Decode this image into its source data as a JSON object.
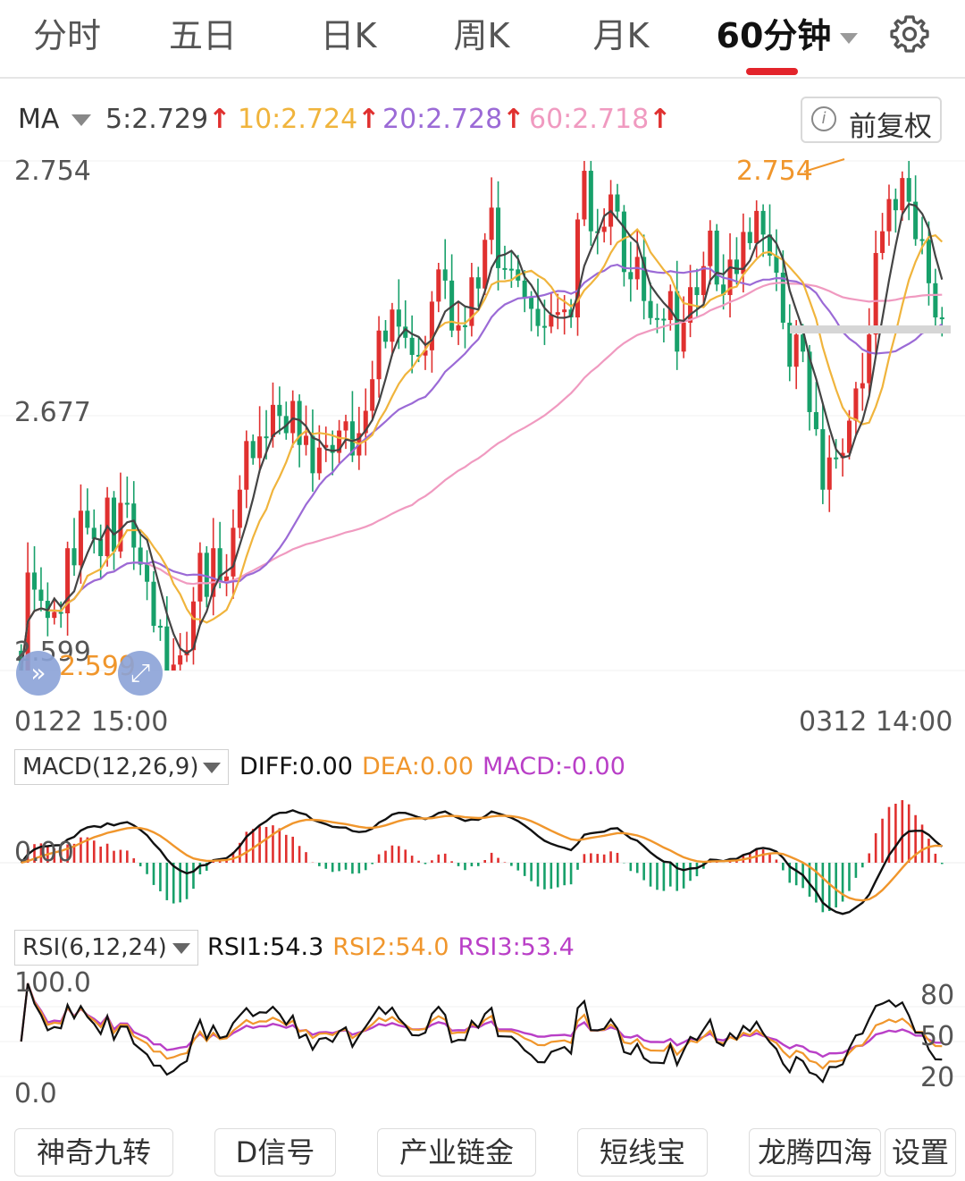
{
  "tabs": [
    {
      "label": "分时",
      "active": false
    },
    {
      "label": "五日",
      "active": false
    },
    {
      "label": "日K",
      "active": false
    },
    {
      "label": "周K",
      "active": false
    },
    {
      "label": "月K",
      "active": false
    },
    {
      "label": "60分钟",
      "active": true
    }
  ],
  "ma": {
    "label": "MA",
    "items": [
      {
        "text": "5:2.729",
        "color": "#444444"
      },
      {
        "text": "10:2.724",
        "color": "#f0b43c"
      },
      {
        "text": "20:2.728",
        "color": "#9b6ad6"
      },
      {
        "text": "60:2.718",
        "color": "#f09ac0"
      }
    ],
    "adjust_label": "前复权"
  },
  "price_axis": {
    "top": "2.754",
    "mid": "2.677",
    "bottom": "2.599"
  },
  "annotations": {
    "high": "2.754",
    "low": "2.599"
  },
  "time_axis": {
    "start": "0122 15:00",
    "end": "0312 14:00"
  },
  "macd": {
    "selector": "MACD(12,26,9)",
    "diff": "DIFF:0.00",
    "dea": "DEA:0.00",
    "macd": "MACD:-0.00",
    "zero_label": "0.00"
  },
  "rsi": {
    "selector": "RSI(6,12,24)",
    "rsi1": "RSI1:54.3",
    "rsi2": "RSI2:54.0",
    "rsi3": "RSI3:53.4",
    "top": "100.0",
    "bottom": "0.0",
    "right_ticks": [
      "80",
      "50",
      "20"
    ]
  },
  "bottom_buttons": [
    "神奇九转",
    "D信号",
    "产业链金",
    "短线宝",
    "龙腾四海",
    "设置"
  ],
  "colors": {
    "up": "#e0302f",
    "down": "#17a06a",
    "ma5": "#444444",
    "ma10": "#f0b43c",
    "ma20": "#9b6ad6",
    "ma60": "#f09ac0",
    "diff": "#111111",
    "dea": "#f0962c",
    "macd": "#b93fc7"
  },
  "chart_data": {
    "type": "candlestick",
    "interval": "60分钟",
    "candle_count": 140,
    "price_ylim": [
      2.599,
      2.754
    ],
    "close_path": [
      2.605,
      2.63,
      2.62,
      2.625,
      2.615,
      2.612,
      2.62,
      2.635,
      2.625,
      2.65,
      2.64,
      2.645,
      2.635,
      2.648,
      2.64,
      2.65,
      2.645,
      2.64,
      2.63,
      2.62,
      2.615,
      2.61,
      2.605,
      2.602,
      2.6,
      2.61,
      2.62,
      2.63,
      2.625,
      2.635,
      2.62,
      2.63,
      2.64,
      2.66,
      2.67,
      2.66,
      2.675,
      2.67,
      2.675,
      2.68,
      2.67,
      2.675,
      2.67,
      2.668,
      2.665,
      2.668,
      2.664,
      2.67,
      2.672,
      2.67,
      2.668,
      2.67,
      2.672,
      2.69,
      2.7,
      2.705,
      2.71,
      2.7,
      2.705,
      2.695,
      2.69,
      2.7,
      2.71,
      2.715,
      2.72,
      2.7,
      2.71,
      2.705,
      2.715,
      2.72,
      2.73,
      2.735,
      2.725,
      2.72,
      2.715,
      2.72,
      2.71,
      2.715,
      2.705,
      2.7,
      2.712,
      2.708,
      2.704,
      2.71,
      2.735,
      2.745,
      2.735,
      2.73,
      2.74,
      2.745,
      2.735,
      2.725,
      2.718,
      2.72,
      2.715,
      2.705,
      2.7,
      2.708,
      2.712,
      2.702,
      2.706,
      2.712,
      2.718,
      2.722,
      2.728,
      2.72,
      2.712,
      2.718,
      2.722,
      2.73,
      2.735,
      2.74,
      2.728,
      2.73,
      2.72,
      2.7,
      2.695,
      2.7,
      2.69,
      2.68,
      2.67,
      2.66,
      2.665,
      2.66,
      2.67,
      2.675,
      2.68,
      2.69,
      2.7,
      2.72,
      2.735,
      2.74,
      2.745,
      2.75,
      2.738,
      2.735,
      2.73,
      2.712,
      2.71,
      2.705
    ],
    "macd_ylim": [
      -0.02,
      0.02
    ],
    "rsi_ylim": [
      0,
      100
    ]
  }
}
